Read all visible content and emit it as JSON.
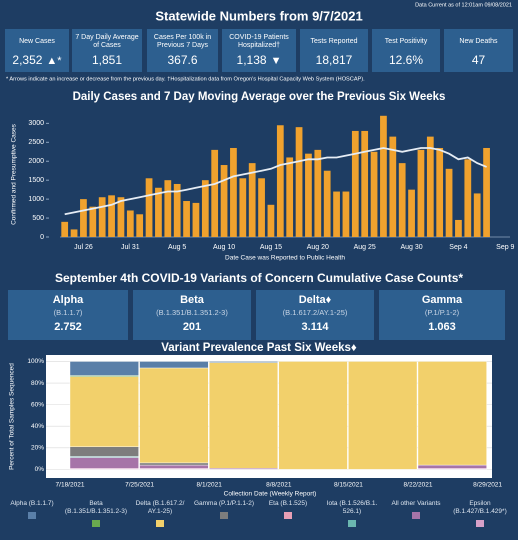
{
  "header": {
    "timestamp": "Data Current as of 12:01am 09/08/2021",
    "title": "Statewide Numbers from 9/7/2021"
  },
  "stats": [
    {
      "label": "New Cases",
      "value": "2,352",
      "arrow": "▲*"
    },
    {
      "label": "7 Day Daily Average of Cases",
      "value": "1,851"
    },
    {
      "label": "Cases Per 100k in Previous 7 Days",
      "value": "367.6"
    },
    {
      "label": "COVID-19 Patients Hospitalized†",
      "value": "1,138",
      "arrow": "▼"
    },
    {
      "label": "Tests Reported",
      "value": "18,817"
    },
    {
      "label": "Test Positivity",
      "value": "12.6%"
    },
    {
      "label": "New Deaths",
      "value": "47"
    }
  ],
  "footnote": "* Arrows indicate an increase or decrease from the previous day. †Hospitalization data from Oregon's Hospital Capacity Web System (HOSCAP).",
  "variants": {
    "title": "September 4th  COVID-19 Variants of Concern Cumulative Case Counts*",
    "cards": [
      {
        "name": "Alpha",
        "lineage": "(B.1.1.7)",
        "count": "2.752"
      },
      {
        "name": "Beta",
        "lineage": "(B.1.351/B.1.351.2-3)",
        "count": "201"
      },
      {
        "name": "Delta♦",
        "lineage": "(B.1.617.2/AY.1-25)",
        "count": "3.114"
      },
      {
        "name": "Gamma",
        "lineage": "(P.1/P.1-2)",
        "count": "1.063"
      }
    ]
  },
  "chart_data": [
    {
      "type": "bar",
      "title": "Daily Cases and 7 Day Moving Average over the Previous Six Weeks",
      "x_label": "Date Case was Reported to Public Health",
      "y_label": "Confirmed and Presumptive Cases",
      "categories": [
        null,
        null,
        "Jul 26",
        null,
        null,
        null,
        null,
        "Jul 31",
        null,
        null,
        null,
        null,
        "Aug 5",
        null,
        null,
        null,
        null,
        "Aug 10",
        null,
        null,
        null,
        null,
        "Aug 15",
        null,
        null,
        null,
        null,
        "Aug 20",
        null,
        null,
        null,
        null,
        "Aug 25",
        null,
        null,
        null,
        null,
        "Aug 30",
        null,
        null,
        null,
        null,
        "Sep 4",
        null,
        null,
        null,
        null,
        "Sep 9"
      ],
      "series": [
        {
          "type": "bar",
          "color": "#f0a22e",
          "values": [
            400,
            200,
            1000,
            800,
            1050,
            1100,
            1050,
            700,
            600,
            1550,
            1300,
            1500,
            1400,
            950,
            900,
            1500,
            2300,
            1900,
            2350,
            1550,
            1950,
            1550,
            850,
            2950,
            2100,
            2900,
            2200,
            2300,
            1750,
            1200,
            1200,
            2800,
            2800,
            2250,
            3200,
            2650,
            1950,
            1250,
            2300,
            2650,
            2350,
            1800,
            450,
            2050,
            1150,
            2350,
            null,
            null
          ]
        },
        {
          "type": "line",
          "color": "#e6edf5",
          "values": [
            600,
            650,
            700,
            750,
            800,
            850,
            950,
            1000,
            1050,
            1100,
            1150,
            1200,
            1200,
            1250,
            1300,
            1350,
            1400,
            1500,
            1600,
            1650,
            1700,
            1750,
            1800,
            1900,
            1950,
            2000,
            2050,
            2050,
            2100,
            2100,
            2150,
            2200,
            2250,
            2300,
            2350,
            2300,
            2250,
            2300,
            2350,
            2350,
            2300,
            2200,
            2050,
            2100,
            1950,
            1850,
            null,
            null
          ]
        }
      ],
      "ylim": [
        0,
        3300
      ],
      "yticks": [
        0,
        500,
        1000,
        1500,
        2000,
        2500,
        3000
      ],
      "grid": false
    },
    {
      "type": "stacked_bar",
      "title": "Variant Prevalence Past Six Weeks♦",
      "x_label": "Collection Date (Weekly Report)",
      "y_label": "Percent of Total Samples Sequenced",
      "xticks": [
        "7/18/2021",
        "7/25/2021",
        "8/1/2021",
        "8/8/2021",
        "8/15/2021",
        "8/22/2021",
        "8/29/2021"
      ],
      "series": [
        {
          "name": "Alpha (B.1.1.7)",
          "color": "#5a7fa8",
          "values": [
            13,
            6,
            1,
            0,
            0,
            0
          ]
        },
        {
          "name": "Beta (B.1.351/B.1.351.2-3)",
          "color": "#6aaa4f",
          "values": [
            1,
            0,
            0,
            0,
            0,
            0
          ]
        },
        {
          "name": "Delta (B.1.617.2/ AY.1-25)",
          "color": "#f2d06b",
          "values": [
            65,
            88,
            98,
            100,
            100,
            96
          ]
        },
        {
          "name": "Gamma (P.1/P.1.1-2)",
          "color": "#7d7d7d",
          "values": [
            9,
            2,
            0,
            0,
            0,
            0
          ]
        },
        {
          "name": "Eta (B.1.525)",
          "color": "#e79fb5",
          "values": [
            0,
            0,
            0,
            0,
            0,
            0
          ]
        },
        {
          "name": "Iota (B.1.526/B.1. 526.1)",
          "color": "#6bb7b0",
          "values": [
            1,
            0,
            0,
            0,
            0,
            0
          ]
        },
        {
          "name": "All other Variants",
          "color": "#a674a8",
          "values": [
            10,
            3,
            1,
            0,
            0,
            3
          ]
        },
        {
          "name": "Epsilon (B.1.427/B.1.429*)",
          "color": "#d6a0c8",
          "values": [
            1,
            1,
            0,
            0,
            0,
            1
          ]
        }
      ],
      "ylim": [
        -8,
        106
      ],
      "yticks": [
        {
          "value": 0,
          "label": "0%"
        },
        {
          "value": 20,
          "label": "20%"
        },
        {
          "value": 40,
          "label": "40%"
        },
        {
          "value": 60,
          "label": "60%"
        },
        {
          "value": 80,
          "label": "80%"
        },
        {
          "value": 100,
          "label": "100%"
        }
      ],
      "grid": true
    }
  ]
}
